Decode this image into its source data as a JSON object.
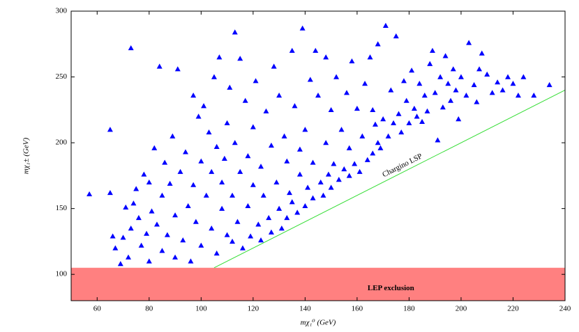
{
  "chart_data": {
    "type": "scatter",
    "x_label": "mχ₁⁰ (GeV)",
    "y_label": "mχ₁± (GeV)",
    "xlim": [
      50,
      240
    ],
    "ylim": [
      80,
      300
    ],
    "xticks": [
      60,
      80,
      100,
      120,
      140,
      160,
      180,
      200,
      220,
      240
    ],
    "yticks": [
      100,
      150,
      200,
      250,
      300
    ],
    "exclusion": {
      "label": "LEP exclusion",
      "y": [
        80,
        105
      ],
      "color": "#ff8080"
    },
    "reference_line": {
      "label": "Chargino LSP",
      "x": [
        105,
        240
      ],
      "y": [
        105,
        240
      ],
      "color": "#33dd33"
    },
    "series": [
      {
        "color": "#0000ff",
        "x": [
          57,
          65,
          65,
          66,
          67,
          69,
          70,
          71,
          72,
          73,
          73,
          74,
          75,
          76,
          77,
          78,
          79,
          80,
          80,
          81,
          82,
          83,
          84,
          85,
          85,
          86,
          87,
          88,
          89,
          90,
          90,
          91,
          92,
          93,
          94,
          95,
          96,
          97,
          97,
          98,
          99,
          100,
          100,
          101,
          102,
          103,
          104,
          104,
          105,
          106,
          106,
          107,
          108,
          108,
          109,
          110,
          110,
          111,
          112,
          112,
          113,
          113,
          114,
          115,
          115,
          116,
          117,
          118,
          118,
          119,
          120,
          120,
          121,
          122,
          123,
          123,
          124,
          125,
          126,
          127,
          127,
          128,
          129,
          130,
          130,
          131,
          132,
          133,
          133,
          134,
          135,
          135,
          136,
          137,
          138,
          138,
          139,
          140,
          140,
          141,
          142,
          143,
          143,
          144,
          145,
          146,
          147,
          148,
          148,
          149,
          150,
          150,
          151,
          152,
          153,
          154,
          155,
          156,
          157,
          157,
          158,
          159,
          160,
          161,
          162,
          163,
          164,
          165,
          166,
          166,
          167,
          168,
          168,
          169,
          170,
          171,
          172,
          173,
          174,
          175,
          176,
          177,
          178,
          179,
          180,
          181,
          182,
          183,
          184,
          185,
          186,
          187,
          188,
          189,
          190,
          191,
          192,
          193,
          194,
          195,
          196,
          197,
          198,
          199,
          200,
          202,
          203,
          205,
          206,
          207,
          208,
          210,
          212,
          214,
          216,
          218,
          220,
          222,
          224,
          228,
          234
        ],
        "values": [
          161,
          210,
          162,
          129,
          120,
          108,
          128,
          151,
          113,
          135,
          272,
          154,
          165,
          143,
          122,
          176,
          131,
          170,
          110,
          148,
          196,
          138,
          258,
          118,
          160,
          185,
          130,
          169,
          205,
          145,
          113,
          256,
          178,
          126,
          193,
          152,
          110,
          236,
          168,
          140,
          220,
          186,
          122,
          228,
          160,
          208,
          135,
          178,
          250,
          116,
          197,
          265,
          150,
          170,
          188,
          215,
          130,
          242,
          125,
          160,
          284,
          200,
          140,
          178,
          264,
          120,
          232,
          152,
          190,
          129,
          168,
          212,
          247,
          138,
          182,
          126,
          160,
          224,
          143,
          198,
          132,
          258,
          170,
          150,
          236,
          135,
          205,
          186,
          143,
          162,
          270,
          155,
          228,
          147,
          195,
          176,
          287,
          152,
          210,
          166,
          248,
          158,
          185,
          270,
          236,
          170,
          160,
          265,
          200,
          176,
          166,
          225,
          184,
          250,
          172,
          210,
          180,
          238,
          175,
          196,
          262,
          184,
          226,
          178,
          205,
          245,
          187,
          265,
          192,
          225,
          214,
          275,
          200,
          196,
          218,
          289,
          205,
          240,
          215,
          281,
          222,
          208,
          247,
          232,
          215,
          255,
          226,
          220,
          245,
          216,
          236,
          224,
          260,
          270,
          238,
          202,
          250,
          227,
          266,
          245,
          232,
          256,
          240,
          218,
          250,
          236,
          276,
          244,
          231,
          256,
          268,
          252,
          238,
          246,
          240,
          250,
          245,
          236,
          250,
          236,
          244
        ]
      }
    ]
  }
}
